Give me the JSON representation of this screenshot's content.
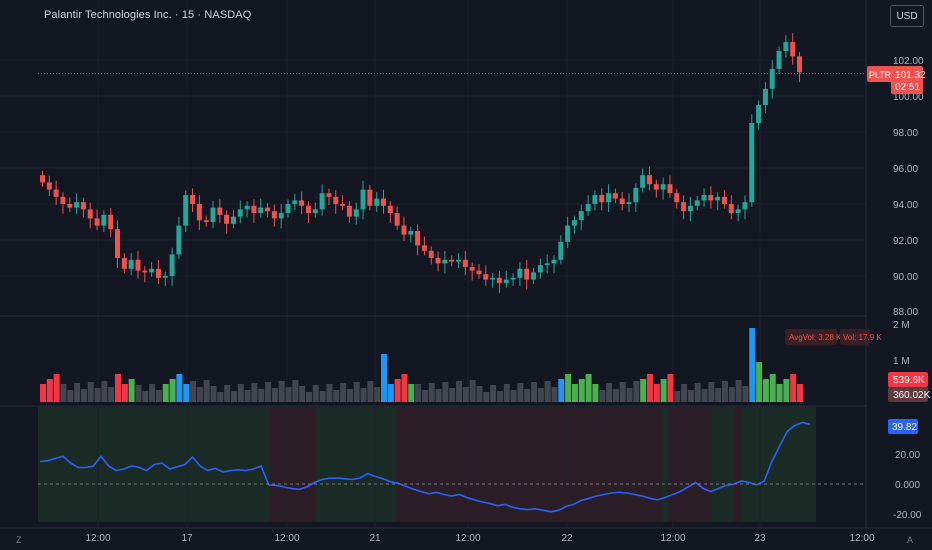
{
  "header": {
    "title": "Palantir Technologies Inc. · 15 · NASDAQ",
    "currency_button": "USD"
  },
  "price_axis": {
    "ticks": [
      "102.00",
      "100.00",
      "98.00",
      "96.00",
      "94.00",
      "92.00",
      "90.00",
      "88.00"
    ],
    "last_price_symbol": "PLTR",
    "last_price": "101.32",
    "countdown": "02:51"
  },
  "volume_pane": {
    "ticks": [
      "2 M",
      "1 M"
    ],
    "avg_vol_label": "AvgVol: 3.28 K",
    "vol_label": "Vol: 17.9 K",
    "vol_badge_1": "539.6K",
    "vol_badge_2": "360.02K"
  },
  "indicator_pane": {
    "ticks": [
      "20.00",
      "0.000",
      "-20.00"
    ],
    "value_badge": "39.82"
  },
  "time_axis": {
    "labels": [
      "12:00",
      "17",
      "12:00",
      "21",
      "12:00",
      "22",
      "12:00",
      "23",
      "12:00"
    ]
  },
  "corner_icons": {
    "left": "Z",
    "right": "A"
  },
  "colors": {
    "background": "#131722",
    "up": "#26a69a",
    "down": "#ef5350",
    "vol_up": "#4caf50",
    "vol_down": "#f23645",
    "vol_neutral": "#434651",
    "vol_highlight": "#2196f3",
    "indicator_line": "#2962ff"
  },
  "chart_data": [
    {
      "type": "candlestick",
      "title": "Palantir Technologies Inc. · 15 · NASDAQ",
      "ylim": [
        88,
        103
      ],
      "last_price": 101.32,
      "x_labels": [
        "12:00",
        "17",
        "12:00",
        "21",
        "12:00",
        "22",
        "12:00",
        "23",
        "12:00"
      ],
      "closes": [
        95.2,
        94.8,
        94.4,
        94.0,
        93.8,
        94.1,
        93.7,
        93.2,
        92.8,
        93.4,
        92.6,
        91.0,
        90.4,
        90.9,
        90.3,
        90.2,
        90.4,
        89.9,
        90.0,
        91.2,
        92.8,
        94.5,
        94.0,
        93.1,
        93.0,
        93.8,
        93.4,
        92.9,
        93.3,
        93.7,
        93.9,
        93.5,
        93.8,
        93.6,
        93.2,
        93.5,
        94.0,
        94.2,
        93.9,
        93.5,
        93.7,
        94.6,
        94.4,
        94.0,
        93.9,
        93.3,
        93.7,
        94.8,
        93.9,
        94.3,
        93.9,
        93.5,
        92.8,
        92.3,
        92.5,
        91.7,
        91.4,
        91.0,
        90.7,
        90.9,
        90.8,
        90.9,
        90.5,
        90.3,
        90.1,
        89.8,
        89.9,
        89.6,
        89.8,
        89.9,
        90.4,
        89.8,
        90.2,
        90.6,
        90.7,
        90.9,
        91.9,
        92.8,
        93.1,
        93.6,
        94.0,
        94.5,
        94.1,
        94.6,
        94.3,
        94.0,
        94.1,
        94.9,
        95.6,
        95.1,
        94.8,
        95.1,
        94.6,
        94.1,
        93.6,
        93.9,
        94.2,
        94.5,
        94.2,
        94.4,
        94.0,
        93.5,
        93.7,
        94.1,
        98.5,
        99.5,
        100.4,
        101.5,
        102.5,
        103.0,
        102.2,
        101.32
      ],
      "volume_unit": "M",
      "volume_ticks": [
        "2 M",
        "1 M"
      ],
      "indicator": {
        "values": [
          15,
          15.5,
          17,
          18.5,
          14,
          11,
          11,
          12,
          18.5,
          12,
          9,
          10,
          12,
          11,
          9,
          13,
          14,
          10,
          11.5,
          13,
          18,
          12,
          9,
          10.5,
          8,
          9,
          9.5,
          9,
          10,
          12,
          -0.5,
          -1,
          -2,
          -3,
          -3.5,
          -2,
          1,
          3,
          3.8,
          4,
          3.5,
          3,
          4,
          7,
          5,
          3.5,
          1.5,
          0.5,
          -1.5,
          -3.5,
          -5,
          -6.5,
          -5.5,
          -7,
          -8,
          -7,
          -9,
          -10.5,
          -12,
          -13,
          -14.5,
          -13.5,
          -15.5,
          -16.5,
          -17,
          -16.5,
          -17.5,
          -18.5,
          -17.5,
          -15,
          -13.5,
          -11,
          -9.5,
          -8,
          -7,
          -6,
          -5.5,
          -6,
          -7,
          -8,
          -9.5,
          -10.5,
          -9,
          -7,
          -5,
          -2,
          1,
          -3,
          -5,
          -3,
          -1,
          0,
          2,
          1,
          -0.5,
          2,
          15,
          25,
          35,
          39,
          41,
          39.82
        ],
        "ticks": [
          "20.00",
          "0.000",
          "-20.00"
        ],
        "last_value": 39.82
      }
    }
  ]
}
